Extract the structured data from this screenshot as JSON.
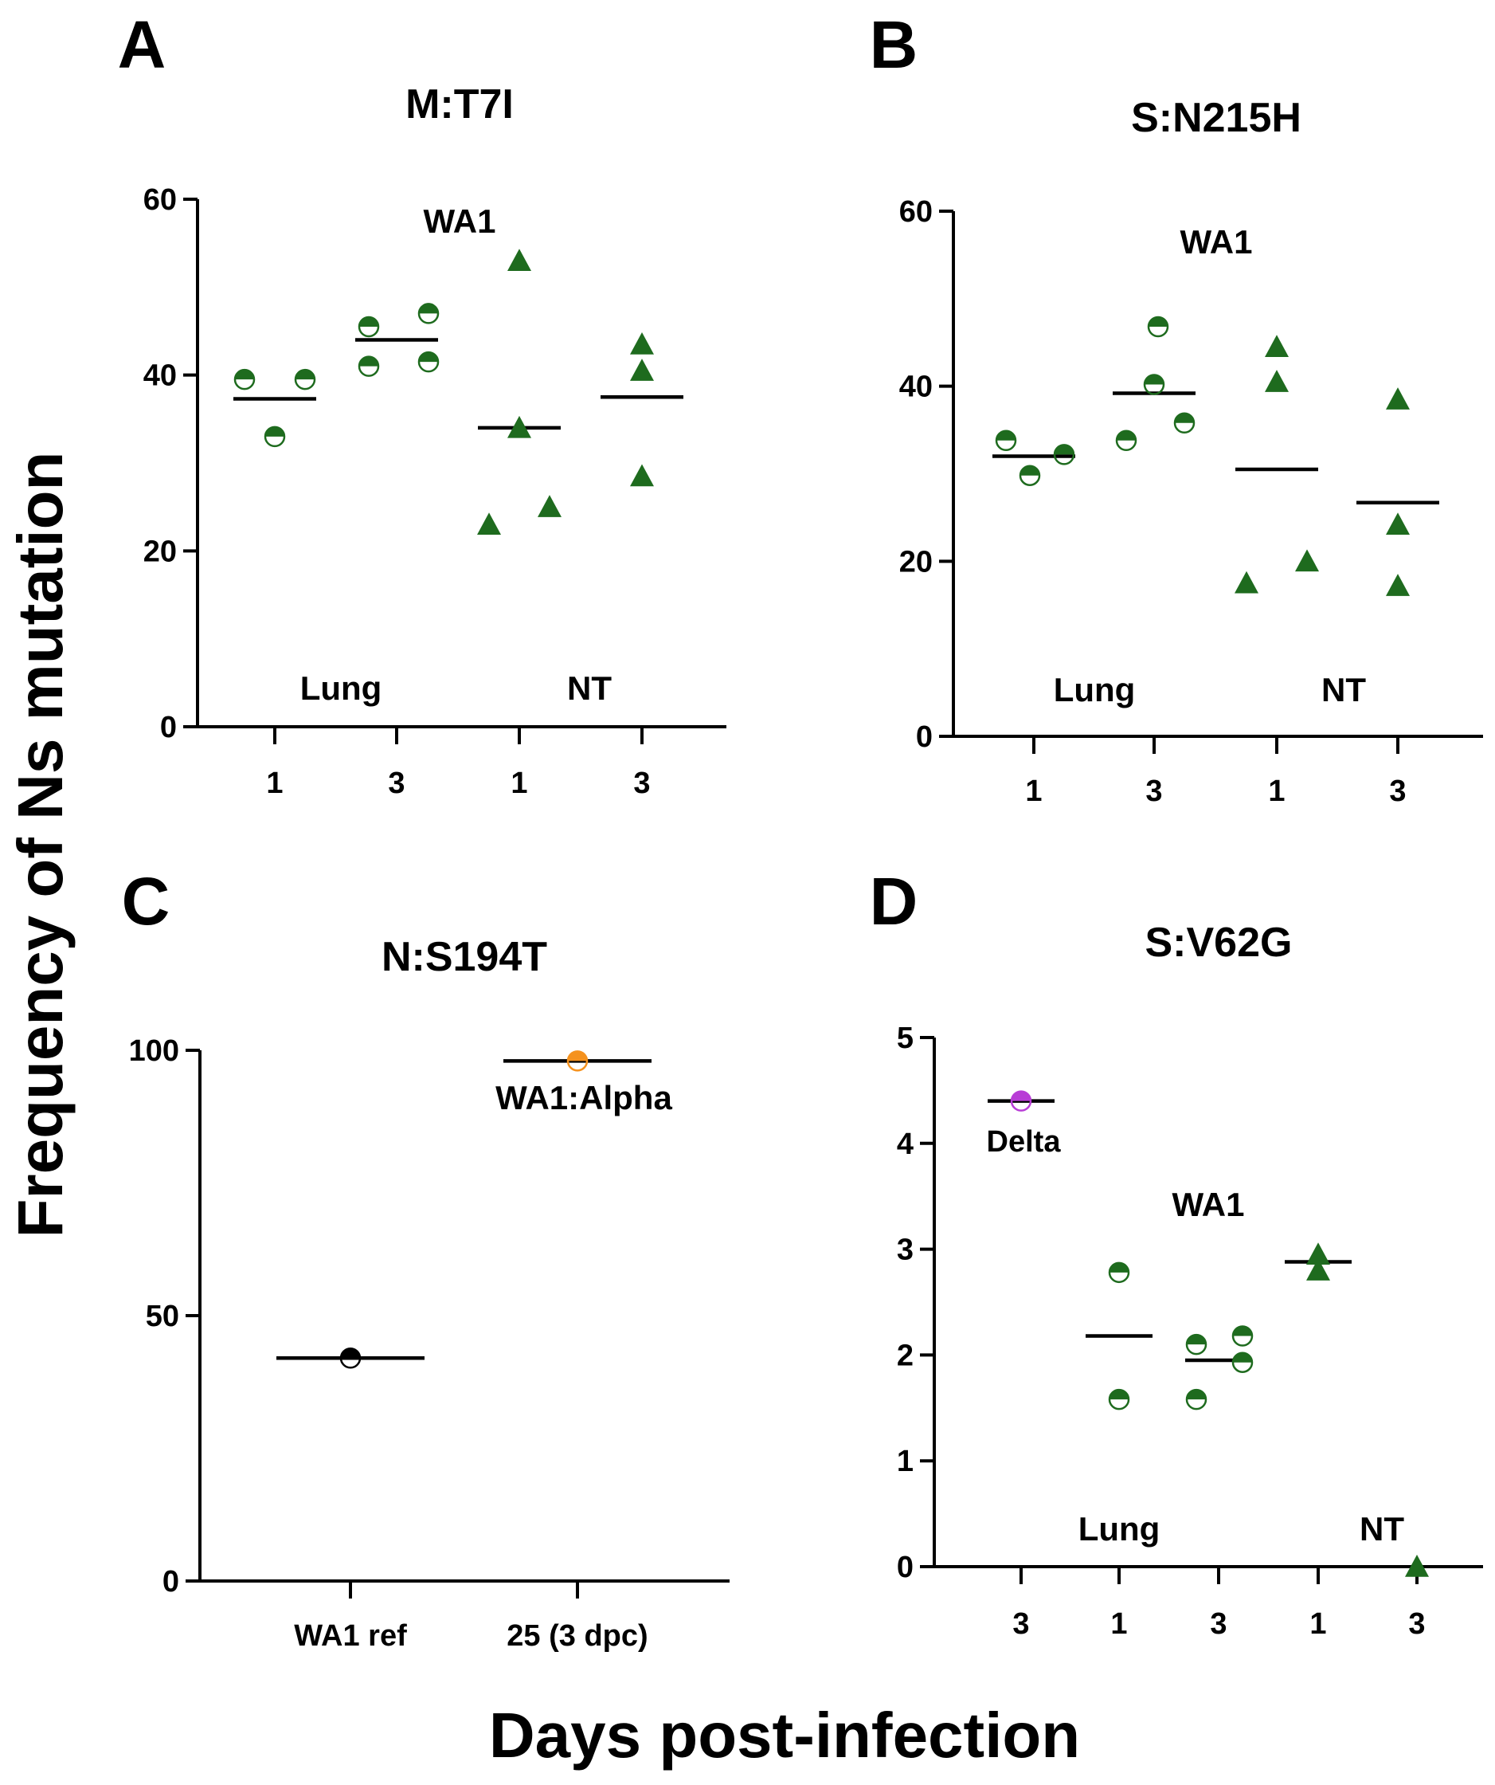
{
  "figure": {
    "ylabel": "Frequency of Ns mutation",
    "xlabel": "Days post-infection"
  },
  "colors": {
    "green": "#1e6b1e",
    "orange": "#f5921e",
    "purple": "#b83dd6",
    "black": "#000000"
  },
  "chart_data": [
    {
      "type": "scatter",
      "panel": "A",
      "title": "M:T7I",
      "ylim": [
        0,
        60
      ],
      "yticks": [
        0,
        20,
        40,
        60
      ],
      "categories": [
        "1",
        "3",
        "1",
        "3"
      ],
      "group_labels": [
        "Lung",
        "NT"
      ],
      "annotation": "WA1",
      "series": [
        {
          "category_index": 0,
          "marker": "half-circle",
          "values": [
            39.5,
            39.5,
            33
          ],
          "mean": 37.3
        },
        {
          "category_index": 1,
          "marker": "half-circle",
          "values": [
            45.5,
            47,
            41,
            41.5
          ],
          "mean": 44
        },
        {
          "category_index": 2,
          "marker": "triangle",
          "values": [
            53,
            34,
            23,
            25
          ],
          "mean": 34
        },
        {
          "category_index": 3,
          "marker": "triangle",
          "values": [
            43.5,
            40.5,
            28.5
          ],
          "mean": 37.5
        }
      ]
    },
    {
      "type": "scatter",
      "panel": "B",
      "title": "S:N215H",
      "ylim": [
        0,
        60
      ],
      "yticks": [
        0,
        20,
        40,
        60
      ],
      "categories": [
        "1",
        "3",
        "1",
        "3"
      ],
      "group_labels": [
        "Lung",
        "NT"
      ],
      "annotation": "WA1",
      "series": [
        {
          "category_index": 0,
          "marker": "half-circle",
          "values": [
            33.8,
            29.8,
            32.2
          ],
          "mean": 32
        },
        {
          "category_index": 1,
          "marker": "half-circle",
          "values": [
            46.8,
            40.2,
            33.8,
            35.8
          ],
          "mean": 39.2
        },
        {
          "category_index": 2,
          "marker": "triangle",
          "values": [
            44.5,
            40.5,
            17.5,
            20
          ],
          "mean": 30.5
        },
        {
          "category_index": 3,
          "marker": "triangle",
          "values": [
            38.5,
            24.2,
            17.2
          ],
          "mean": 26.7
        }
      ]
    },
    {
      "type": "scatter",
      "panel": "C",
      "title": "N:S194T",
      "ylim": [
        0,
        100
      ],
      "yticks": [
        0,
        50,
        100
      ],
      "categories": [
        "WA1 ref",
        "25 (3 dpc)"
      ],
      "annotation": "WA1:Alpha",
      "series": [
        {
          "category_index": 0,
          "marker": "half-circle",
          "color": "black",
          "values": [
            42
          ],
          "mean": 42
        },
        {
          "category_index": 1,
          "marker": "half-circle",
          "color": "orange",
          "values": [
            98
          ],
          "mean": 98
        }
      ]
    },
    {
      "type": "scatter",
      "panel": "D",
      "title": "S:V62G",
      "ylim": [
        0,
        5
      ],
      "yticks": [
        0,
        1,
        2,
        3,
        4,
        5
      ],
      "categories": [
        "3",
        "1",
        "3",
        "1",
        "3"
      ],
      "group_labels": [
        "Lung",
        "NT"
      ],
      "annotation": "WA1",
      "extra_annotation": "Delta",
      "series": [
        {
          "category_index": 0,
          "marker": "half-circle",
          "color": "purple",
          "values": [
            4.4
          ],
          "mean": 4.4
        },
        {
          "category_index": 1,
          "marker": "half-circle",
          "values": [
            2.78,
            1.58
          ],
          "mean": 2.18
        },
        {
          "category_index": 2,
          "marker": "half-circle",
          "values": [
            2.1,
            2.18,
            1.93,
            1.58
          ],
          "mean": 1.95
        },
        {
          "category_index": 3,
          "marker": "triangle",
          "values": [
            2.95,
            2.8
          ],
          "mean": 2.88
        },
        {
          "category_index": 4,
          "marker": "triangle",
          "values": [
            0
          ],
          "mean": null
        }
      ]
    }
  ]
}
